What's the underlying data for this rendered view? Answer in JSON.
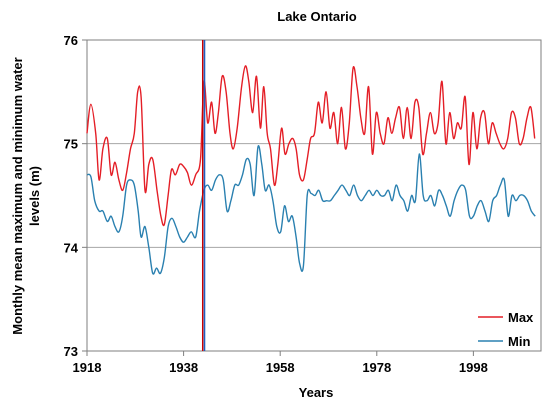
{
  "chart_data": {
    "type": "line",
    "title": "Lake Ontario",
    "xlabel": "Years",
    "ylabel_lines": [
      "Monthly mean maximum and minimum water",
      "levels (m)"
    ],
    "xlim": [
      1918,
      2012
    ],
    "ylim": [
      73,
      76
    ],
    "x_ticks": [
      "1918",
      "1938",
      "1958",
      "1978",
      "1998"
    ],
    "y_ticks": [
      "73",
      "74",
      "75",
      "76"
    ],
    "grid": "horizontal",
    "legend_position": "bottom-right",
    "reference_line": {
      "x": 1942.2,
      "colors": [
        "#cc0000",
        "#1f5fbf"
      ]
    },
    "series": [
      {
        "name": "Max",
        "color": "#e41e26",
        "points": [
          [
            1918.0,
            75.1
          ],
          [
            1918.8,
            75.38
          ],
          [
            1919.8,
            75.1
          ],
          [
            1920.5,
            74.65
          ],
          [
            1921.3,
            74.95
          ],
          [
            1922.2,
            75.05
          ],
          [
            1923.0,
            74.7
          ],
          [
            1923.8,
            74.82
          ],
          [
            1924.6,
            74.65
          ],
          [
            1925.4,
            74.55
          ],
          [
            1926.2,
            74.72
          ],
          [
            1927.0,
            74.95
          ],
          [
            1927.8,
            75.1
          ],
          [
            1928.5,
            75.5
          ],
          [
            1929.2,
            75.45
          ],
          [
            1930.0,
            74.55
          ],
          [
            1930.8,
            74.8
          ],
          [
            1931.6,
            74.85
          ],
          [
            1932.5,
            74.55
          ],
          [
            1933.3,
            74.3
          ],
          [
            1934.0,
            74.22
          ],
          [
            1934.8,
            74.5
          ],
          [
            1935.5,
            74.75
          ],
          [
            1936.3,
            74.7
          ],
          [
            1937.2,
            74.8
          ],
          [
            1938.0,
            74.78
          ],
          [
            1938.8,
            74.72
          ],
          [
            1939.6,
            74.6
          ],
          [
            1940.5,
            74.7
          ],
          [
            1941.5,
            74.85
          ],
          [
            1942.2,
            75.6
          ],
          [
            1943.0,
            75.2
          ],
          [
            1943.8,
            75.4
          ],
          [
            1944.5,
            75.1
          ],
          [
            1945.2,
            75.3
          ],
          [
            1946.0,
            75.65
          ],
          [
            1946.8,
            75.5
          ],
          [
            1947.6,
            75.1
          ],
          [
            1948.3,
            74.95
          ],
          [
            1949.1,
            75.15
          ],
          [
            1950.0,
            75.55
          ],
          [
            1950.8,
            75.75
          ],
          [
            1951.5,
            75.6
          ],
          [
            1952.3,
            75.3
          ],
          [
            1953.1,
            75.65
          ],
          [
            1953.9,
            75.15
          ],
          [
            1954.6,
            75.55
          ],
          [
            1955.3,
            75.1
          ],
          [
            1956.0,
            74.95
          ],
          [
            1956.8,
            74.6
          ],
          [
            1957.5,
            74.8
          ],
          [
            1958.3,
            75.15
          ],
          [
            1959.0,
            74.9
          ],
          [
            1959.8,
            75.0
          ],
          [
            1960.6,
            75.05
          ],
          [
            1961.3,
            74.95
          ],
          [
            1962.0,
            74.7
          ],
          [
            1962.8,
            74.65
          ],
          [
            1963.6,
            74.85
          ],
          [
            1964.3,
            75.05
          ],
          [
            1965.1,
            75.1
          ],
          [
            1965.9,
            75.4
          ],
          [
            1966.7,
            75.2
          ],
          [
            1967.5,
            75.5
          ],
          [
            1968.3,
            75.15
          ],
          [
            1969.1,
            75.3
          ],
          [
            1969.9,
            75.0
          ],
          [
            1970.7,
            75.35
          ],
          [
            1971.5,
            74.95
          ],
          [
            1972.3,
            75.2
          ],
          [
            1973.1,
            75.73
          ],
          [
            1973.9,
            75.55
          ],
          [
            1974.7,
            75.25
          ],
          [
            1975.5,
            75.1
          ],
          [
            1976.3,
            75.55
          ],
          [
            1977.1,
            74.9
          ],
          [
            1977.9,
            75.3
          ],
          [
            1978.7,
            75.1
          ],
          [
            1979.5,
            75.0
          ],
          [
            1980.3,
            75.25
          ],
          [
            1981.1,
            75.1
          ],
          [
            1981.9,
            75.25
          ],
          [
            1982.7,
            75.35
          ],
          [
            1983.5,
            75.05
          ],
          [
            1984.3,
            75.35
          ],
          [
            1985.1,
            75.05
          ],
          [
            1985.9,
            75.4
          ],
          [
            1986.7,
            75.35
          ],
          [
            1987.5,
            74.9
          ],
          [
            1988.3,
            75.1
          ],
          [
            1989.1,
            75.3
          ],
          [
            1989.9,
            75.1
          ],
          [
            1990.7,
            75.2
          ],
          [
            1991.5,
            75.6
          ],
          [
            1992.3,
            75.0
          ],
          [
            1993.1,
            75.3
          ],
          [
            1993.9,
            75.05
          ],
          [
            1994.7,
            75.2
          ],
          [
            1995.5,
            75.15
          ],
          [
            1996.3,
            75.45
          ],
          [
            1997.1,
            74.8
          ],
          [
            1997.9,
            75.3
          ],
          [
            1998.7,
            74.95
          ],
          [
            1999.5,
            75.25
          ],
          [
            2000.3,
            75.3
          ],
          [
            2001.1,
            75.0
          ],
          [
            2001.9,
            75.2
          ],
          [
            2002.7,
            75.1
          ],
          [
            2003.5,
            75.0
          ],
          [
            2004.3,
            74.95
          ],
          [
            2005.1,
            75.05
          ],
          [
            2005.9,
            75.3
          ],
          [
            2006.7,
            75.25
          ],
          [
            2007.5,
            75.0
          ],
          [
            2008.3,
            75.05
          ],
          [
            2009.1,
            75.25
          ],
          [
            2009.9,
            75.35
          ],
          [
            2010.7,
            75.05
          ]
        ]
      },
      {
        "name": "Min",
        "color": "#2a80b0",
        "points": [
          [
            1918.0,
            74.7
          ],
          [
            1918.8,
            74.68
          ],
          [
            1919.6,
            74.45
          ],
          [
            1920.5,
            74.35
          ],
          [
            1921.3,
            74.35
          ],
          [
            1922.2,
            74.25
          ],
          [
            1923.0,
            74.3
          ],
          [
            1923.8,
            74.2
          ],
          [
            1924.6,
            74.15
          ],
          [
            1925.4,
            74.3
          ],
          [
            1926.2,
            74.6
          ],
          [
            1927.0,
            74.65
          ],
          [
            1927.8,
            74.6
          ],
          [
            1928.6,
            74.35
          ],
          [
            1929.2,
            74.1
          ],
          [
            1930.0,
            74.2
          ],
          [
            1930.8,
            74.0
          ],
          [
            1931.6,
            73.75
          ],
          [
            1932.4,
            73.8
          ],
          [
            1933.2,
            73.75
          ],
          [
            1934.0,
            73.9
          ],
          [
            1934.8,
            74.2
          ],
          [
            1935.6,
            74.28
          ],
          [
            1936.4,
            74.2
          ],
          [
            1937.2,
            74.1
          ],
          [
            1938.0,
            74.05
          ],
          [
            1938.8,
            74.1
          ],
          [
            1939.6,
            74.15
          ],
          [
            1940.5,
            74.1
          ],
          [
            1941.3,
            74.35
          ],
          [
            1942.2,
            74.55
          ],
          [
            1943.0,
            74.6
          ],
          [
            1943.8,
            74.55
          ],
          [
            1944.6,
            74.65
          ],
          [
            1945.4,
            74.7
          ],
          [
            1946.2,
            74.65
          ],
          [
            1947.0,
            74.35
          ],
          [
            1947.8,
            74.45
          ],
          [
            1948.6,
            74.6
          ],
          [
            1949.4,
            74.6
          ],
          [
            1950.2,
            74.7
          ],
          [
            1951.0,
            74.85
          ],
          [
            1951.8,
            74.8
          ],
          [
            1952.6,
            74.5
          ],
          [
            1953.4,
            74.97
          ],
          [
            1954.2,
            74.8
          ],
          [
            1954.9,
            74.55
          ],
          [
            1955.7,
            74.6
          ],
          [
            1956.5,
            74.45
          ],
          [
            1957.3,
            74.2
          ],
          [
            1958.1,
            74.15
          ],
          [
            1958.9,
            74.4
          ],
          [
            1959.7,
            74.25
          ],
          [
            1960.5,
            74.3
          ],
          [
            1961.3,
            74.1
          ],
          [
            1962.0,
            73.85
          ],
          [
            1962.8,
            73.82
          ],
          [
            1963.6,
            74.5
          ],
          [
            1964.4,
            74.52
          ],
          [
            1965.2,
            74.5
          ],
          [
            1966.0,
            74.55
          ],
          [
            1966.8,
            74.45
          ],
          [
            1967.6,
            74.45
          ],
          [
            1968.4,
            74.45
          ],
          [
            1969.2,
            74.5
          ],
          [
            1970.0,
            74.55
          ],
          [
            1970.8,
            74.6
          ],
          [
            1971.6,
            74.55
          ],
          [
            1972.4,
            74.5
          ],
          [
            1973.2,
            74.6
          ],
          [
            1974.0,
            74.5
          ],
          [
            1974.8,
            74.45
          ],
          [
            1975.6,
            74.5
          ],
          [
            1976.4,
            74.55
          ],
          [
            1977.2,
            74.5
          ],
          [
            1978.0,
            74.55
          ],
          [
            1978.8,
            74.5
          ],
          [
            1979.6,
            74.5
          ],
          [
            1980.4,
            74.55
          ],
          [
            1981.2,
            74.45
          ],
          [
            1982.0,
            74.6
          ],
          [
            1982.8,
            74.5
          ],
          [
            1983.6,
            74.45
          ],
          [
            1984.4,
            74.35
          ],
          [
            1985.2,
            74.5
          ],
          [
            1986.0,
            74.45
          ],
          [
            1986.8,
            74.9
          ],
          [
            1987.6,
            74.5
          ],
          [
            1988.4,
            74.45
          ],
          [
            1989.2,
            74.5
          ],
          [
            1990.0,
            74.4
          ],
          [
            1990.8,
            74.55
          ],
          [
            1991.6,
            74.5
          ],
          [
            1992.4,
            74.4
          ],
          [
            1993.2,
            74.3
          ],
          [
            1994.0,
            74.45
          ],
          [
            1994.8,
            74.55
          ],
          [
            1995.6,
            74.6
          ],
          [
            1996.4,
            74.55
          ],
          [
            1997.2,
            74.3
          ],
          [
            1998.0,
            74.3
          ],
          [
            1998.8,
            74.4
          ],
          [
            1999.6,
            74.45
          ],
          [
            2000.4,
            74.35
          ],
          [
            2001.2,
            74.25
          ],
          [
            2002.0,
            74.45
          ],
          [
            2002.8,
            74.5
          ],
          [
            2003.6,
            74.6
          ],
          [
            2004.4,
            74.65
          ],
          [
            2005.2,
            74.3
          ],
          [
            2006.0,
            74.5
          ],
          [
            2006.8,
            74.45
          ],
          [
            2007.6,
            74.5
          ],
          [
            2008.4,
            74.5
          ],
          [
            2009.2,
            74.45
          ],
          [
            2010.0,
            74.35
          ],
          [
            2010.8,
            74.3
          ]
        ]
      }
    ]
  }
}
